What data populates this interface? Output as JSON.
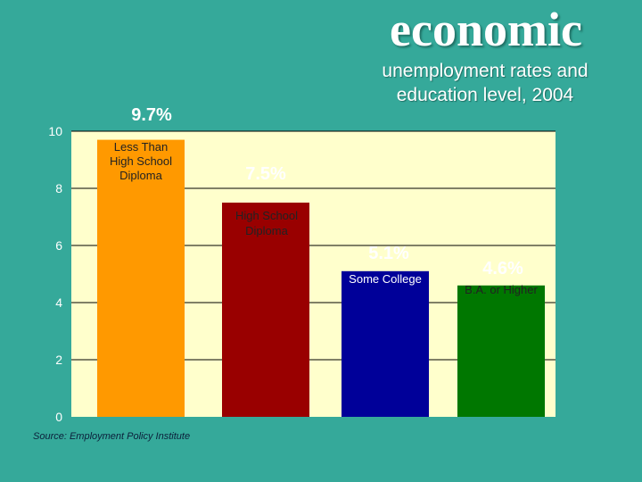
{
  "title": "economic",
  "subtitle_lines": [
    "unemployment rates and",
    "education level, 2004"
  ],
  "source": "Source:  Employment Policy Institute",
  "colors": {
    "background": "#35A99A",
    "plot_area": "#FFFFCC",
    "gridline": "#000000",
    "label_on_bar": "#ffffff",
    "label_on_light": "#222222"
  },
  "chart_data": {
    "type": "bar",
    "categories": [
      [
        "Less Than",
        "High School",
        "Diploma"
      ],
      [
        "High School",
        "Diploma"
      ],
      [
        "Some College"
      ],
      [
        "B.A. or Higher"
      ]
    ],
    "values": [
      9.7,
      7.5,
      5.1,
      4.6
    ],
    "value_labels": [
      "9.7%",
      "7.5%",
      "5.1%",
      "4.6%"
    ],
    "bar_colors": [
      "#FF9900",
      "#990000",
      "#000099",
      "#007700"
    ],
    "ylim": [
      0,
      10
    ],
    "yticks": [
      0,
      2,
      4,
      6,
      8,
      10
    ],
    "grid": true
  }
}
